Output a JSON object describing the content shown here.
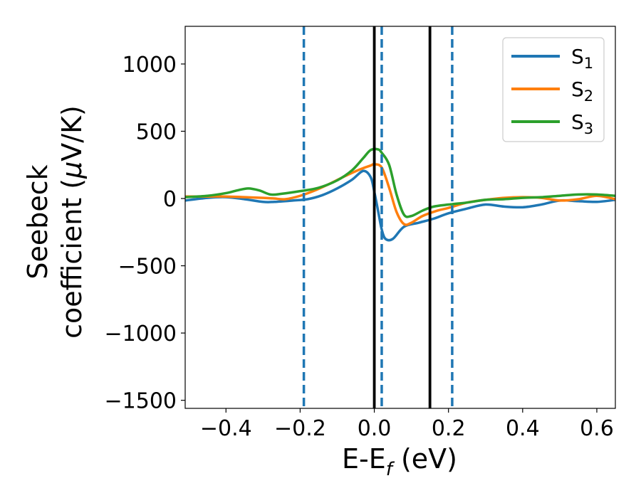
{
  "chart_data": {
    "type": "line",
    "xlabel": "E-E",
    "xlabel_sub": "f",
    "xlabel_unit": " (eV)",
    "ylabel_line1": "Seebeck",
    "ylabel_line2_prefix": "coefficient  (",
    "ylabel_mu": "μ",
    "ylabel_line2_suffix": "V/K)",
    "xlim": [
      -0.51,
      0.65
    ],
    "ylim": [
      -1560,
      1280
    ],
    "xticks": [
      -0.4,
      -0.2,
      0.0,
      0.2,
      0.4,
      0.6
    ],
    "xtick_labels": [
      "−0.4",
      "−0.2",
      "0.0",
      "0.2",
      "0.4",
      "0.6"
    ],
    "yticks": [
      1000,
      500,
      0,
      -500,
      -1000,
      -1500
    ],
    "ytick_labels": [
      "1000",
      "500",
      "0",
      "−500",
      "−1000",
      "−1500"
    ],
    "grid": false,
    "legend_position": "top-right",
    "vlines": [
      {
        "x": 0.0,
        "style": "solid",
        "color": "#000000"
      },
      {
        "x": 0.15,
        "style": "solid",
        "color": "#000000"
      },
      {
        "x": -0.19,
        "style": "dashed",
        "color": "#1f77b4"
      },
      {
        "x": 0.02,
        "style": "dashed",
        "color": "#1f77b4"
      },
      {
        "x": 0.21,
        "style": "dashed",
        "color": "#1f77b4"
      }
    ],
    "series": [
      {
        "name": "S",
        "sub": "1",
        "color": "#1f77b4",
        "x": [
          -0.51,
          -0.45,
          -0.4,
          -0.35,
          -0.3,
          -0.27,
          -0.22,
          -0.18,
          -0.14,
          -0.1,
          -0.06,
          -0.03,
          -0.01,
          0.0,
          0.01,
          0.02,
          0.03,
          0.05,
          0.08,
          0.12,
          0.16,
          0.2,
          0.25,
          0.3,
          0.35,
          0.4,
          0.45,
          0.5,
          0.55,
          0.6,
          0.65
        ],
        "y": [
          -15,
          5,
          10,
          -5,
          -25,
          -25,
          -15,
          -5,
          25,
          75,
          140,
          205,
          160,
          50,
          -90,
          -230,
          -300,
          -300,
          -210,
          -180,
          -150,
          -110,
          -75,
          -45,
          -60,
          -65,
          -45,
          -15,
          -20,
          -25,
          -10
        ]
      },
      {
        "name": "S",
        "sub": "2",
        "color": "#ff7f0e",
        "x": [
          -0.51,
          -0.45,
          -0.4,
          -0.35,
          -0.3,
          -0.27,
          -0.24,
          -0.2,
          -0.16,
          -0.12,
          -0.08,
          -0.04,
          -0.01,
          0.0,
          0.02,
          0.04,
          0.06,
          0.08,
          0.1,
          0.13,
          0.17,
          0.2,
          0.25,
          0.3,
          0.35,
          0.4,
          0.45,
          0.5,
          0.55,
          0.6,
          0.65
        ],
        "y": [
          15,
          15,
          15,
          10,
          5,
          0,
          -5,
          20,
          60,
          110,
          165,
          215,
          245,
          255,
          230,
          80,
          -100,
          -190,
          -180,
          -130,
          -90,
          -70,
          -30,
          -10,
          5,
          10,
          5,
          -15,
          -5,
          20,
          -5
        ]
      },
      {
        "name": "S",
        "sub": "3",
        "color": "#2ca02c",
        "x": [
          -0.51,
          -0.45,
          -0.4,
          -0.37,
          -0.34,
          -0.31,
          -0.28,
          -0.25,
          -0.2,
          -0.15,
          -0.1,
          -0.06,
          -0.03,
          -0.01,
          0.01,
          0.02,
          0.04,
          0.06,
          0.08,
          0.1,
          0.13,
          0.16,
          0.2,
          0.25,
          0.3,
          0.35,
          0.4,
          0.45,
          0.5,
          0.55,
          0.6,
          0.65
        ],
        "y": [
          10,
          20,
          40,
          60,
          75,
          60,
          30,
          35,
          55,
          80,
          135,
          210,
          300,
          360,
          365,
          340,
          250,
          30,
          -120,
          -130,
          -90,
          -60,
          -45,
          -30,
          -10,
          -5,
          5,
          10,
          20,
          30,
          30,
          20
        ]
      }
    ]
  }
}
